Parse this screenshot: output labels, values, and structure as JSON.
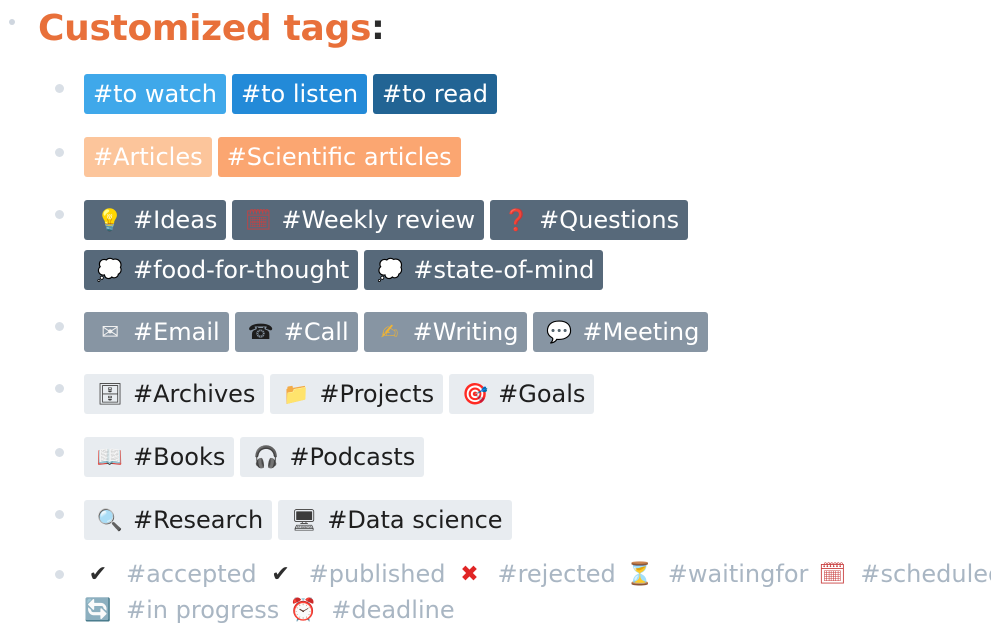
{
  "heading": {
    "title": "Customized tags",
    "colon": ":"
  },
  "groups": [
    {
      "tags": [
        {
          "label": "#to watch"
        },
        {
          "label": "#to listen"
        },
        {
          "label": "#to read"
        }
      ]
    },
    {
      "tags": [
        {
          "label": "#Articles"
        },
        {
          "label": "#Scientific articles"
        }
      ]
    },
    {
      "tags": [
        {
          "icon": "💡",
          "icon_name": "lightbulb-icon",
          "label": "#Ideas"
        },
        {
          "icon": "🗓",
          "icon_name": "calendar-icon",
          "label": "#Weekly review"
        },
        {
          "icon": "❓",
          "icon_name": "question-mark-icon",
          "label": "#Questions"
        },
        {
          "icon": "💭",
          "icon_name": "thought-bubble-icon",
          "label": "#food-for-thought"
        },
        {
          "icon": "💭",
          "icon_name": "thought-bubble-icon",
          "label": "#state-of-mind"
        }
      ]
    },
    {
      "tags": [
        {
          "icon": "✉",
          "icon_name": "envelope-icon",
          "label": "#Email"
        },
        {
          "icon": "☎",
          "icon_name": "phone-icon",
          "label": "#Call"
        },
        {
          "icon": "✍",
          "icon_name": "writing-hand-icon",
          "label": "#Writing"
        },
        {
          "icon": "💬",
          "icon_name": "speech-bubble-icon",
          "label": "#Meeting"
        }
      ]
    },
    {
      "tags": [
        {
          "icon": "🗄",
          "icon_name": "file-cabinet-icon",
          "label": "#Archives"
        },
        {
          "icon": "📁",
          "icon_name": "folder-icon",
          "label": "#Projects"
        },
        {
          "icon": "🎯",
          "icon_name": "target-icon",
          "label": "#Goals"
        }
      ]
    },
    {
      "tags": [
        {
          "icon": "📖",
          "icon_name": "open-book-icon",
          "label": "#Books"
        },
        {
          "icon": "🎧",
          "icon_name": "headphones-icon",
          "label": "#Podcasts"
        }
      ]
    },
    {
      "tags": [
        {
          "icon": "🔍",
          "icon_name": "magnifier-icon",
          "label": "#Research"
        },
        {
          "icon": "🖥",
          "icon_name": "desktop-computer-icon",
          "label": "#Data science"
        }
      ]
    }
  ],
  "status_tags": [
    {
      "icon": "✔",
      "icon_name": "check-mark-icon",
      "label": "#accepted"
    },
    {
      "icon": "✔",
      "icon_name": "check-mark-icon",
      "label": "#published"
    },
    {
      "icon": "✖",
      "icon_name": "cross-mark-icon",
      "label": "#rejected"
    },
    {
      "icon": "⏳",
      "icon_name": "hourglass-icon",
      "label": "#waitingfor"
    },
    {
      "icon": "🗓",
      "icon_name": "calendar-icon",
      "label": "#scheduled"
    },
    {
      "icon": "🔄",
      "icon_name": "refresh-cycle-icon",
      "label": "#in progress"
    },
    {
      "icon": "⏰",
      "icon_name": "alarm-clock-icon",
      "label": "#deadline"
    }
  ],
  "colors": {
    "title": "#e8703a",
    "blue_light": "#3fa8ea",
    "blue_mid": "#238ad8",
    "blue_dark": "#226494",
    "peach_light": "#fcc59b",
    "peach": "#fba671",
    "slate": "#57697a",
    "slate_light": "#8795a3",
    "pale": "#e8ecf0",
    "status_text": "#a9b6c3"
  }
}
